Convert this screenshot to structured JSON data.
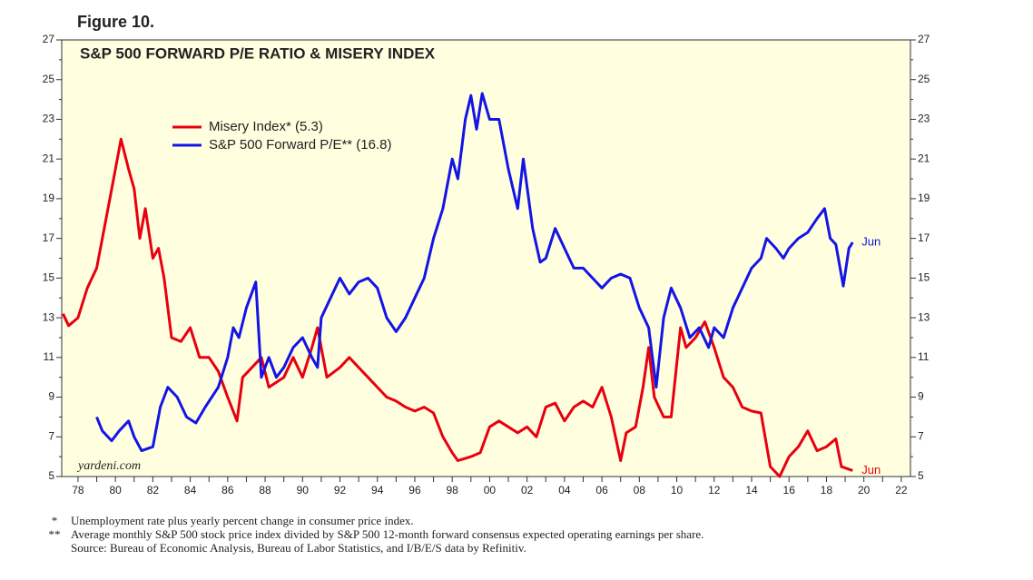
{
  "chart_data": {
    "type": "line",
    "figure_label": "Figure 10.",
    "title": "S&P 500 FORWARD P/E RATIO & MISERY INDEX",
    "source_logo": "yardeni.com",
    "background": "#ffffe0",
    "xlim": [
      1977.13,
      2022.49
    ],
    "ylim": [
      5,
      27
    ],
    "yticks": [
      5,
      7,
      9,
      11,
      13,
      15,
      17,
      19,
      21,
      23,
      25,
      27
    ],
    "xticks": [
      {
        "value": 1978,
        "label": "78"
      },
      {
        "value": 1980,
        "label": "80"
      },
      {
        "value": 1982,
        "label": "82"
      },
      {
        "value": 1984,
        "label": "84"
      },
      {
        "value": 1986,
        "label": "86"
      },
      {
        "value": 1988,
        "label": "88"
      },
      {
        "value": 1990,
        "label": "90"
      },
      {
        "value": 1992,
        "label": "92"
      },
      {
        "value": 1994,
        "label": "94"
      },
      {
        "value": 1996,
        "label": "96"
      },
      {
        "value": 1998,
        "label": "98"
      },
      {
        "value": 2000,
        "label": "00"
      },
      {
        "value": 2002,
        "label": "02"
      },
      {
        "value": 2004,
        "label": "04"
      },
      {
        "value": 2006,
        "label": "06"
      },
      {
        "value": 2008,
        "label": "08"
      },
      {
        "value": 2010,
        "label": "10"
      },
      {
        "value": 2012,
        "label": "12"
      },
      {
        "value": 2014,
        "label": "14"
      },
      {
        "value": 2016,
        "label": "16"
      },
      {
        "value": 2018,
        "label": "18"
      },
      {
        "value": 2020,
        "label": "20"
      },
      {
        "value": 2022,
        "label": "22"
      }
    ],
    "series": [
      {
        "name": "Misery Index* (5.3)",
        "color": "#e8000f",
        "x": [
          1977.2,
          1977.5,
          1978,
          1978.5,
          1979,
          1979.5,
          1980,
          1980.3,
          1980.7,
          1981,
          1981.3,
          1981.6,
          1982,
          1982.3,
          1982.6,
          1983,
          1983.5,
          1984,
          1984.5,
          1985,
          1985.5,
          1986,
          1986.5,
          1986.8,
          1987.3,
          1987.8,
          1988.2,
          1989,
          1989.5,
          1990,
          1990.5,
          1990.8,
          1991.3,
          1992,
          1992.5,
          1993,
          1993.5,
          1994.5,
          1995,
          1995.5,
          1996,
          1996.5,
          1997,
          1997.5,
          1998,
          1998.3,
          1999,
          1999.5,
          2000,
          2000.5,
          2001,
          2001.5,
          2002,
          2002.5,
          2003,
          2003.5,
          2004,
          2004.5,
          2005,
          2005.5,
          2006,
          2006.5,
          2007,
          2007.3,
          2007.8,
          2008.2,
          2008.5,
          2008.8,
          2009.3,
          2009.7,
          2010.2,
          2010.5,
          2011,
          2011.5,
          2012,
          2012.5,
          2013,
          2013.5,
          2014,
          2014.5,
          2015,
          2015.5,
          2016,
          2016.5,
          2017,
          2017.5,
          2018,
          2018.5,
          2018.8,
          2019.4
        ],
        "values": [
          13.2,
          12.6,
          13,
          14.5,
          15.5,
          18,
          20.5,
          22,
          20.5,
          19.5,
          17,
          18.5,
          16,
          16.5,
          15,
          12,
          11.8,
          12.5,
          11,
          11,
          10.3,
          9,
          7.8,
          10,
          10.5,
          11,
          9.5,
          10,
          11,
          10,
          11.5,
          12.5,
          10,
          10.5,
          11,
          10.5,
          10,
          9,
          8.8,
          8.5,
          8.3,
          8.5,
          8.2,
          7,
          6.2,
          5.8,
          6,
          6.2,
          7.5,
          7.8,
          7.5,
          7.2,
          7.5,
          7,
          8.5,
          8.7,
          7.8,
          8.5,
          8.8,
          8.5,
          9.5,
          8,
          5.8,
          7.2,
          7.5,
          9.5,
          11.5,
          9,
          8,
          8,
          12.5,
          11.5,
          12,
          12.8,
          11.5,
          10,
          9.5,
          8.5,
          8.3,
          8.2,
          5.5,
          5,
          6,
          6.5,
          7.3,
          6.3,
          6.5,
          6.9,
          5.5,
          5.3
        ]
      },
      {
        "name": "S&P 500 Forward P/E** (16.8)",
        "color": "#1414e6",
        "x": [
          1979,
          1979.3,
          1979.8,
          1980.2,
          1980.7,
          1981,
          1981.4,
          1982,
          1982.4,
          1982.8,
          1983.3,
          1983.8,
          1984.3,
          1984.8,
          1985.5,
          1986,
          1986.3,
          1986.6,
          1987,
          1987.5,
          1987.8,
          1988.2,
          1988.6,
          1989,
          1989.5,
          1990,
          1990.5,
          1990.8,
          1991,
          1991.5,
          1992,
          1992.5,
          1993,
          1993.5,
          1994,
          1994.5,
          1995,
          1995.5,
          1996,
          1996.5,
          1997,
          1997.5,
          1998,
          1998.3,
          1998.7,
          1999,
          1999.3,
          1999.6,
          2000,
          2000.5,
          2001,
          2001.5,
          2001.8,
          2002.3,
          2002.7,
          2003,
          2003.5,
          2004,
          2004.5,
          2005,
          2005.5,
          2006,
          2006.5,
          2007,
          2007.5,
          2008,
          2008.5,
          2008.9,
          2009.3,
          2009.7,
          2010.2,
          2010.7,
          2011.2,
          2011.7,
          2012,
          2012.5,
          2013,
          2013.5,
          2014,
          2014.5,
          2014.8,
          2015.3,
          2015.7,
          2016,
          2016.5,
          2017,
          2017.5,
          2017.9,
          2018.2,
          2018.5,
          2018.9,
          2019.2,
          2019.4
        ],
        "values": [
          8,
          7.3,
          6.8,
          7.3,
          7.8,
          7,
          6.3,
          6.5,
          8.5,
          9.5,
          9,
          8,
          7.7,
          8.5,
          9.5,
          11,
          12.5,
          12,
          13.5,
          14.8,
          10,
          11,
          10,
          10.5,
          11.5,
          12,
          11,
          10.5,
          13,
          14,
          15,
          14.2,
          14.8,
          15,
          14.5,
          13,
          12.3,
          13,
          14,
          15,
          17,
          18.5,
          21,
          20,
          23,
          24.2,
          22.5,
          24.3,
          23,
          23,
          20.5,
          18.5,
          21,
          17.5,
          15.8,
          16,
          17.5,
          16.5,
          15.5,
          15.5,
          15,
          14.5,
          15,
          15.2,
          15,
          13.5,
          12.5,
          9.5,
          13,
          14.5,
          13.5,
          12,
          12.5,
          11.5,
          12.5,
          12,
          13.5,
          14.5,
          15.5,
          16,
          17,
          16.5,
          16,
          16.5,
          17,
          17.3,
          18,
          18.5,
          17,
          16.7,
          14.6,
          16.5,
          16.8
        ]
      }
    ],
    "annotations": [
      {
        "text": "Jun",
        "series": 1
      },
      {
        "text": "Jun",
        "series": 0
      }
    ],
    "footnotes": [
      {
        "mark": "*",
        "text": "Unemployment rate plus yearly percent change in consumer price index."
      },
      {
        "mark": "**",
        "text": "Average monthly S&P 500 stock price index divided by S&P 500 12-month forward consensus expected operating earnings per share."
      }
    ],
    "source": "Source: Bureau of Economic Analysis, Bureau of Labor Statistics, and I/B/E/S data by Refinitiv."
  }
}
